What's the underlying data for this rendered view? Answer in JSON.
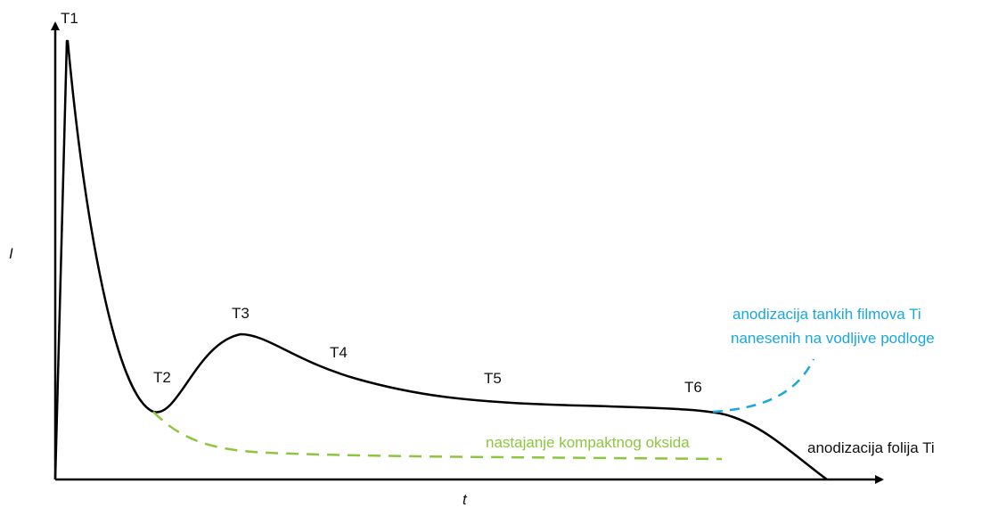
{
  "axes": {
    "y_label": "I",
    "x_label": "t"
  },
  "stages": [
    "T1",
    "T2",
    "T3",
    "T4",
    "T5",
    "T6"
  ],
  "annotations": {
    "thin_films_line1": "anodizacija tankih filmova Ti",
    "thin_films_line2": "nanesenih na vodljive podloge",
    "compact_oxide": "nastajanje kompaktnog oksida",
    "foil": "anodizacija folija Ti"
  },
  "colors": {
    "main_curve": "#000000",
    "thin_films": "#1aa7e0",
    "compact_oxide": "#8cc63f"
  }
}
